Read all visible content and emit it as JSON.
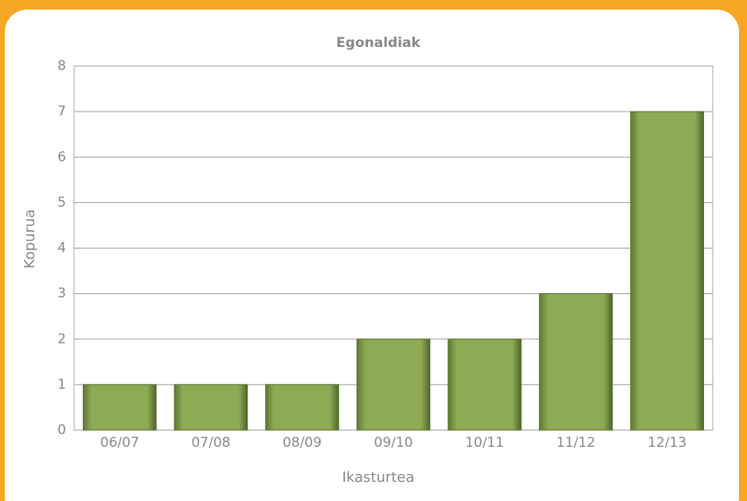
{
  "chart_data": {
    "type": "bar",
    "title": "Egonaldiak",
    "x_label": "Ikasturtea",
    "y_label": "Kopurua",
    "categories": [
      "06/07",
      "07/08",
      "08/09",
      "09/10",
      "10/11",
      "11/12",
      "12/13"
    ],
    "values": [
      1,
      1,
      1,
      2,
      2,
      3,
      7
    ],
    "color": "#8eaa55",
    "ylim": [
      0,
      8
    ],
    "yticks": [
      0,
      1,
      2,
      3,
      4,
      5,
      6,
      7,
      8
    ],
    "grid": true
  }
}
